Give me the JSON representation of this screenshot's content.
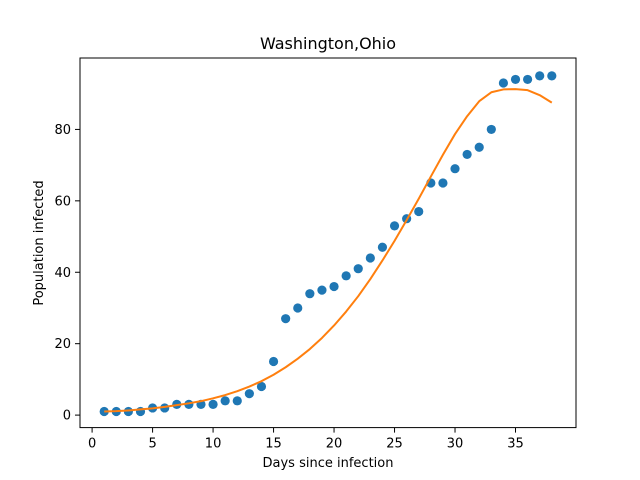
{
  "chart_data": {
    "type": "scatter",
    "title": "Washington,Ohio",
    "xlabel": "Days since infection",
    "ylabel": "Population infected",
    "xlim": [
      -1,
      40
    ],
    "ylim": [
      -3.5,
      100
    ],
    "xticks": [
      0,
      5,
      10,
      15,
      20,
      25,
      30,
      35
    ],
    "yticks": [
      0,
      20,
      40,
      60,
      80
    ],
    "grid": false,
    "series": [
      {
        "kind": "scatter",
        "color": "#1f77b4",
        "x": [
          1,
          2,
          3,
          4,
          5,
          6,
          7,
          8,
          9,
          10,
          11,
          12,
          13,
          14,
          15,
          16,
          17,
          18,
          19,
          20,
          21,
          22,
          23,
          24,
          25,
          26,
          27,
          28,
          29,
          30,
          31,
          32,
          33,
          34,
          35,
          36,
          37,
          38
        ],
        "y": [
          1,
          1,
          1,
          1,
          2,
          2,
          3,
          3,
          3,
          3,
          4,
          4,
          6,
          8,
          15,
          27,
          30,
          34,
          35,
          36,
          39,
          41,
          44,
          47,
          53,
          55,
          57,
          65,
          65,
          69,
          73,
          75,
          80,
          93,
          94,
          94,
          95,
          95
        ]
      },
      {
        "kind": "line",
        "color": "#ff7f0e",
        "x": [
          1,
          2,
          3,
          4,
          5,
          6,
          7,
          8,
          9,
          10,
          11,
          12,
          13,
          14,
          15,
          16,
          17,
          18,
          19,
          20,
          21,
          22,
          23,
          24,
          25,
          26,
          27,
          28,
          29,
          30,
          31,
          32,
          33,
          34,
          35,
          36,
          37,
          38
        ],
        "y": [
          1,
          1.1,
          1.3,
          1.6,
          1.9,
          2.3,
          2.8,
          3.3,
          3.9,
          4.7,
          5.6,
          6.7,
          8,
          9.5,
          11.3,
          13.4,
          15.8,
          18.5,
          21.6,
          25.1,
          29,
          33.3,
          38.1,
          43.3,
          48.8,
          54.6,
          60.6,
          66.8,
          72.9,
          78.7,
          83.7,
          87.9,
          90.4,
          91.2,
          91.3,
          91,
          89.6,
          87.5
        ]
      }
    ]
  }
}
